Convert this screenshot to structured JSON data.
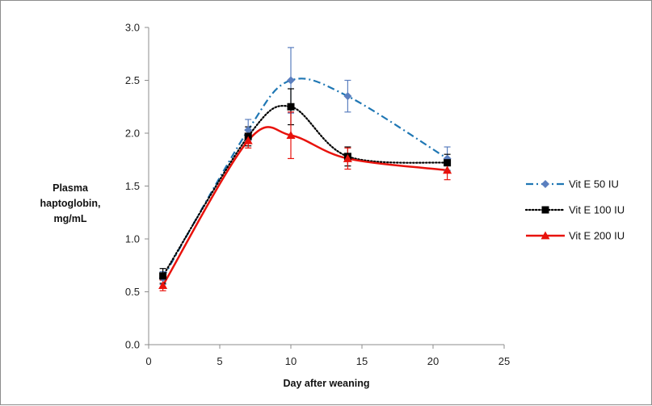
{
  "chart_data": {
    "type": "line",
    "title": "",
    "xlabel": "Day after weaning",
    "ylabel_lines": [
      "Plasma",
      "haptoglobin,",
      "mg/mL"
    ],
    "xlim": [
      0,
      25
    ],
    "ylim": [
      0,
      3.0
    ],
    "x_ticks": [
      0,
      5,
      10,
      15,
      20,
      25
    ],
    "y_ticks": [
      "0.0",
      "0.5",
      "1.0",
      "1.5",
      "2.0",
      "2.5",
      "3.0"
    ],
    "grid": false,
    "smooth": true,
    "legend_position": "right",
    "series": [
      {
        "name": "Vit E 50 IU",
        "color": "#1f77b4",
        "marker": "diamond",
        "marker_color": "#5b7fbf",
        "line_style": "dash-dot",
        "x": [
          1,
          7,
          10,
          14,
          21
        ],
        "y": [
          0.63,
          2.03,
          2.5,
          2.35,
          1.76
        ],
        "err": [
          0.06,
          0.1,
          0.31,
          0.15,
          0.11
        ]
      },
      {
        "name": "Vit E 100 IU",
        "color": "#000000",
        "marker": "square",
        "marker_color": "#000000",
        "line_style": "dotted",
        "x": [
          1,
          7,
          10,
          14,
          21
        ],
        "y": [
          0.65,
          1.97,
          2.25,
          1.78,
          1.72
        ],
        "err": [
          0.07,
          0.09,
          0.17,
          0.09,
          0.08
        ]
      },
      {
        "name": "Vit E 200 IU",
        "color": "#e8120c",
        "marker": "triangle",
        "marker_color": "#e8120c",
        "line_style": "solid",
        "x": [
          1,
          7,
          10,
          14,
          21
        ],
        "y": [
          0.56,
          1.93,
          1.98,
          1.76,
          1.65
        ],
        "err": [
          0.05,
          0.07,
          0.22,
          0.1,
          0.09
        ]
      }
    ]
  }
}
